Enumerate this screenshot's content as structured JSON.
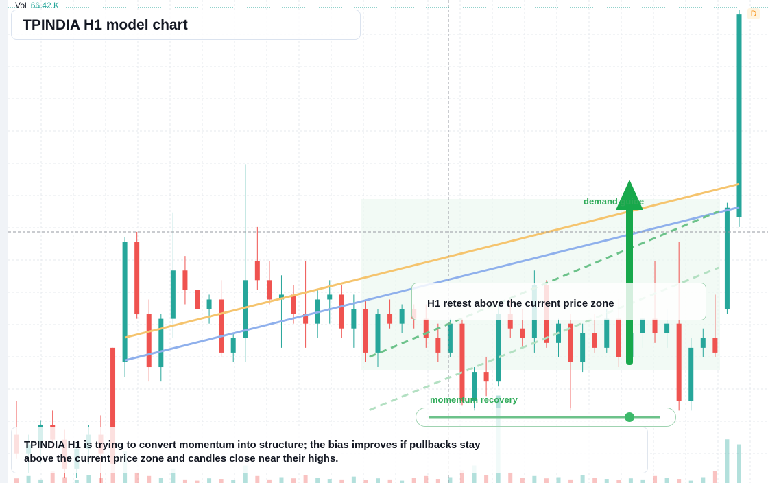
{
  "chart_data": {
    "type": "candlestick",
    "title": "TPINDIA H1 model chart",
    "ylim": [
      0,
      100
    ],
    "categories": [
      null,
      null,
      null,
      null,
      null,
      null,
      null,
      null,
      null,
      null,
      null,
      null,
      null,
      null,
      null,
      null,
      null,
      null,
      null,
      null,
      null,
      null,
      null,
      null,
      null,
      null,
      null,
      null,
      null,
      null,
      null,
      null,
      null,
      null,
      null,
      null,
      null,
      null,
      null,
      null,
      null,
      null,
      null,
      null,
      null,
      null,
      null,
      null,
      null,
      null,
      null,
      null,
      null,
      null,
      null,
      null,
      null,
      null,
      null,
      null,
      null
    ],
    "open": [
      10,
      6,
      8,
      12,
      9,
      3,
      7,
      10,
      28,
      25,
      50,
      35,
      24,
      34,
      44,
      40,
      36,
      38,
      27,
      30,
      46,
      42,
      38,
      39,
      35,
      33,
      38,
      39,
      32,
      36,
      27,
      35,
      33,
      36,
      34,
      30,
      27,
      33,
      17,
      23,
      21,
      35,
      32,
      30,
      41,
      29,
      33,
      25,
      31,
      28,
      34,
      26,
      31,
      34,
      31,
      33,
      17,
      28,
      30,
      36,
      55
    ],
    "high": [
      17,
      10,
      13,
      15,
      11,
      8,
      12,
      14,
      28,
      51,
      52,
      38,
      35,
      56,
      47,
      43,
      39,
      42,
      31,
      66,
      53,
      46,
      43,
      41,
      46,
      40,
      42,
      41,
      39,
      38,
      36,
      38,
      37,
      37,
      37,
      33,
      34,
      34,
      24,
      26,
      37,
      38,
      36,
      44,
      42,
      34,
      35,
      33,
      35,
      36,
      38,
      33,
      36,
      46,
      36,
      50,
      30,
      32,
      39,
      58,
      98
    ],
    "low": [
      5,
      2,
      4,
      7,
      1,
      1,
      4,
      0,
      4,
      22,
      34,
      21,
      21,
      30,
      37,
      34,
      33,
      26,
      25,
      25,
      40,
      37,
      28,
      33,
      28,
      30,
      33,
      30,
      28,
      25,
      24,
      32,
      31,
      32,
      28,
      25,
      26,
      16,
      15,
      18,
      20,
      30,
      28,
      27,
      28,
      26,
      15,
      23,
      27,
      27,
      24,
      25,
      28,
      29,
      28,
      15,
      15,
      26,
      26,
      35,
      53
    ],
    "close": [
      6,
      8,
      12,
      9,
      3,
      7,
      10,
      6,
      4,
      50,
      35,
      24,
      34,
      44,
      40,
      36,
      38,
      27,
      30,
      42,
      42,
      38,
      39,
      35,
      33,
      38,
      39,
      32,
      36,
      27,
      35,
      33,
      36,
      34,
      30,
      27,
      33,
      17,
      23,
      21,
      35,
      32,
      30,
      41,
      29,
      33,
      25,
      31,
      28,
      34,
      26,
      31,
      34,
      31,
      33,
      17,
      28,
      30,
      27,
      57,
      97
    ],
    "up_color": "#26a69a",
    "down_color": "#ef5350",
    "volume": {
      "name": "Vol",
      "last_label": "66.42 K",
      "values": [
        8,
        12,
        6,
        20,
        10,
        5,
        14,
        9,
        40,
        55,
        18,
        12,
        9,
        25,
        6,
        4,
        8,
        7,
        5,
        30,
        12,
        6,
        10,
        8,
        14,
        9,
        7,
        6,
        11,
        5,
        8,
        6,
        4,
        9,
        12,
        7,
        10,
        22,
        30,
        14,
        150,
        18,
        9,
        12,
        8,
        10,
        6,
        14,
        9,
        7,
        5,
        8,
        6,
        12,
        9,
        7,
        4,
        10,
        20,
        75,
        66.42
      ]
    },
    "overlays": [
      {
        "style": "solid",
        "color": "#f5c46e",
        "x": [
          9,
          60
        ],
        "values": [
          30.1,
          61.9
        ]
      },
      {
        "style": "solid",
        "color": "#8fb0ec",
        "x": [
          9,
          60
        ],
        "values": [
          25.4,
          57.1
        ]
      },
      {
        "style": "dashed",
        "color": "#6cc28a",
        "x": [
          29.3,
          58.3
        ],
        "values": [
          26.1,
          56.25
        ]
      },
      {
        "style": "dashed",
        "color": "#b3e0c2",
        "x": [
          29.3,
          58.3
        ],
        "values": [
          15.1,
          44.6
        ]
      }
    ],
    "annotations": {
      "zone_label": "demand guide",
      "retest": "H1 retest above the current price zone",
      "momentum": "momentum recovery",
      "note": [
        "TPINDIA H1 is trying to convert momentum into structure; the bias improves if pullbacks stay",
        "above the current price zone and candles close near their highs."
      ],
      "badge": "D"
    }
  }
}
